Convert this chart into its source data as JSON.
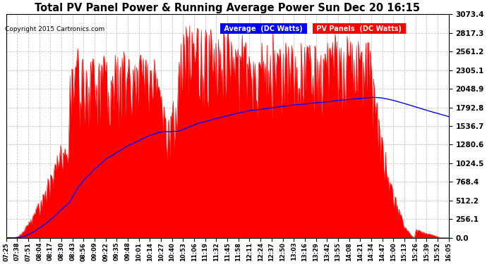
{
  "title": "Total PV Panel Power & Running Average Power Sun Dec 20 16:15",
  "copyright": "Copyright 2015 Cartronics.com",
  "legend_avg": "Average  (DC Watts)",
  "legend_pv": "PV Panels  (DC Watts)",
  "ymax": 3073.4,
  "yticks": [
    0.0,
    256.1,
    512.2,
    768.4,
    1024.5,
    1280.6,
    1536.7,
    1792.8,
    2048.9,
    2305.1,
    2561.2,
    2817.3,
    3073.4
  ],
  "bg_color": "#ffffff",
  "grid_color": "#c8c8c8",
  "pv_color": "#ff0000",
  "avg_color": "#0000ff",
  "title_color": "#000000",
  "xtick_labels": [
    "07:25",
    "07:38",
    "07:51",
    "08:04",
    "08:17",
    "08:30",
    "08:43",
    "08:56",
    "09:09",
    "09:22",
    "09:35",
    "09:48",
    "10:01",
    "10:14",
    "10:27",
    "10:40",
    "10:53",
    "11:06",
    "11:19",
    "11:32",
    "11:45",
    "11:58",
    "12:11",
    "12:24",
    "12:37",
    "12:50",
    "13:03",
    "13:16",
    "13:29",
    "13:42",
    "13:55",
    "14:08",
    "14:21",
    "14:34",
    "14:47",
    "15:00",
    "15:13",
    "15:26",
    "15:39",
    "15:52",
    "16:05"
  ]
}
